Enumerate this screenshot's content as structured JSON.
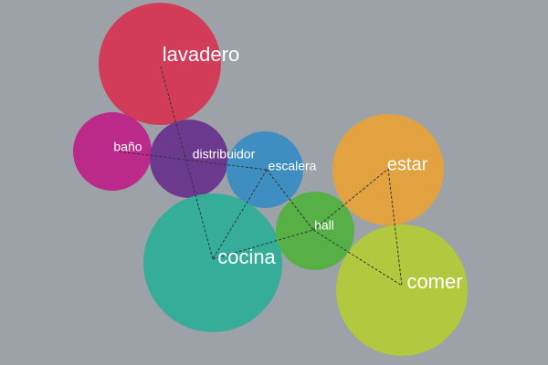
{
  "background": "#9da1a8",
  "edge_color": "#333333",
  "rooms": [
    {
      "id": "lavadero",
      "label": "lavadero",
      "color": "#d23c58"
    },
    {
      "id": "bano",
      "label": "baño",
      "color": "#bb2a8a"
    },
    {
      "id": "distribuidor",
      "label": "distribuidor",
      "color": "#6b3a8e"
    },
    {
      "id": "escalera",
      "label": "escalera",
      "color": "#3f8ec2"
    },
    {
      "id": "cocina",
      "label": "cocina",
      "color": "#35ad98"
    },
    {
      "id": "hall",
      "label": "hall",
      "color": "#56b046"
    },
    {
      "id": "estar",
      "label": "estar",
      "color": "#e2a23f"
    },
    {
      "id": "comer",
      "label": "comer",
      "color": "#b2c93f"
    }
  ],
  "connections": [
    {
      "from": "lavadero",
      "to": "cocina"
    },
    {
      "from": "bano",
      "to": "escalera"
    },
    {
      "from": "escalera",
      "to": "cocina"
    },
    {
      "from": "escalera",
      "to": "hall"
    },
    {
      "from": "cocina",
      "to": "hall"
    },
    {
      "from": "hall",
      "to": "estar"
    },
    {
      "from": "hall",
      "to": "comer"
    },
    {
      "from": "estar",
      "to": "comer"
    }
  ]
}
